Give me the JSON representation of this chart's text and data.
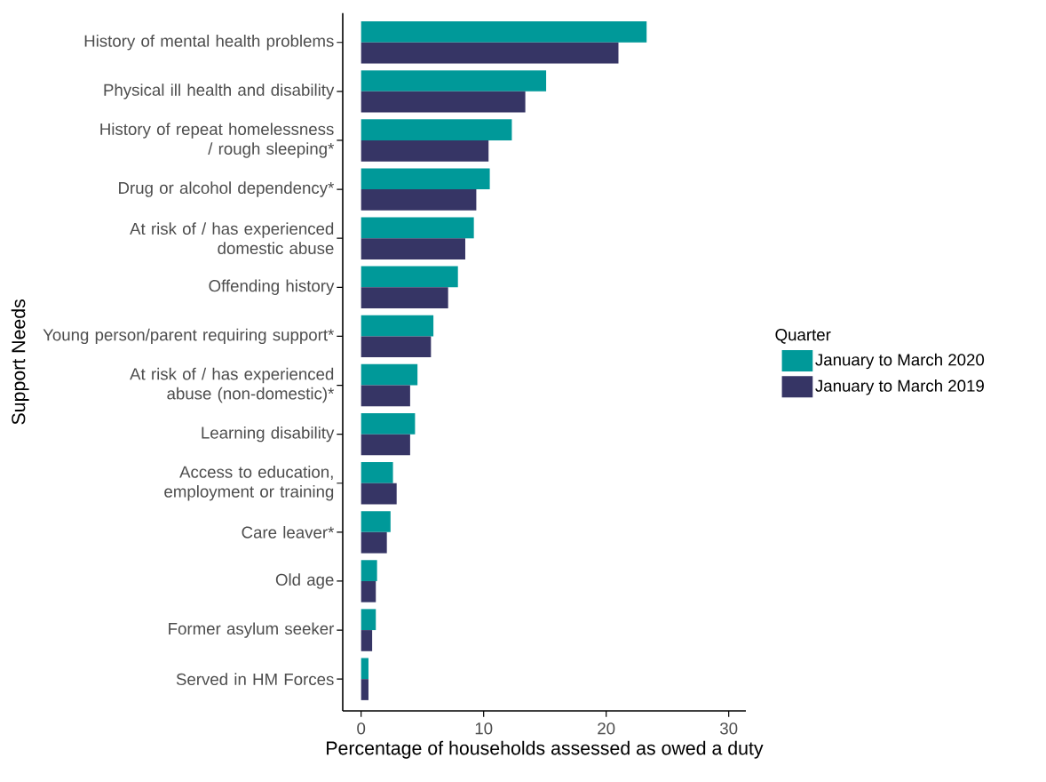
{
  "chart_data": {
    "type": "bar",
    "orientation": "horizontal",
    "xlabel": "Percentage of households assessed as owed a duty",
    "ylabel": "Support Needs",
    "legend_title": "Quarter",
    "legend": "right",
    "grid": false,
    "categories": [
      "History of mental health problems",
      "Physical ill health and disability",
      "History of repeat homelessness / rough sleeping*",
      "Drug or alcohol dependency*",
      "At risk of / has experienced domestic abuse",
      "Offending history",
      "Young person/parent requiring support*",
      "At risk of / has experienced abuse (non-domestic)*",
      "Learning disability",
      "Access to education, employment or training",
      "Care leaver*",
      "Old age",
      "Former asylum seeker",
      "Served in HM Forces"
    ],
    "series": [
      {
        "name": "January to March 2020",
        "color": "#009999",
        "values": [
          23.3,
          15.1,
          12.3,
          10.5,
          9.2,
          7.9,
          5.9,
          4.6,
          4.4,
          2.6,
          2.4,
          1.3,
          1.2,
          0.6
        ]
      },
      {
        "name": "January to March 2019",
        "color": "#363565",
        "values": [
          21.0,
          13.4,
          10.4,
          9.4,
          8.5,
          7.1,
          5.7,
          4.0,
          4.0,
          2.9,
          2.1,
          1.2,
          0.9,
          0.6
        ]
      }
    ],
    "xlim": [
      -1.5,
      31.4
    ],
    "xticks": [
      0,
      10,
      20,
      30
    ]
  }
}
